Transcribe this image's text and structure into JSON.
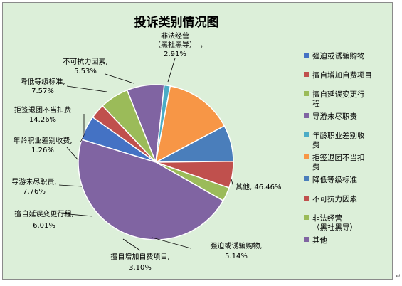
{
  "chart_data": {
    "type": "pie",
    "title": "投诉类别情况图",
    "legend_position": "right",
    "slices": [
      {
        "name": "强迫或诱骗购物",
        "value": 5.14,
        "label": "强迫或诱骗购物,",
        "pct": "5.14%",
        "color": "#4472c4"
      },
      {
        "name": "擅自增加自费项目",
        "value": 3.1,
        "label": "擅自增加自费项目,",
        "pct": "3.10%",
        "color": "#c0504d"
      },
      {
        "name": "擅自延误变更行程",
        "value": 6.01,
        "label": "擅自延误变更行程,",
        "pct": "6.01%",
        "color": "#9bbb59"
      },
      {
        "name": "导游未尽职责",
        "value": 7.76,
        "label": "导游未尽职责,",
        "pct": "7.76%",
        "color": "#8064a2"
      },
      {
        "name": "年龄职业差别收费",
        "value": 1.26,
        "label": "年龄职业差别收费,",
        "pct": "1.26%",
        "color": "#4bacc6"
      },
      {
        "name": "拒签退团不当扣费",
        "value": 14.26,
        "label": "拒签退团不当扣费,",
        "pct": "14.26%",
        "color": "#f79646"
      },
      {
        "name": "降低等级标准",
        "value": 7.57,
        "label": "降低等级标准,",
        "pct": "7.57%",
        "color": "#4a7ebb"
      },
      {
        "name": "不可抗力因素",
        "value": 5.53,
        "label": "不可抗力因素,",
        "pct": "5.53%",
        "color": "#c0504d"
      },
      {
        "name": "非法经营（黑社黑导）",
        "value": 2.91,
        "label": "非法经营（黑社黑导）,",
        "pct": "2.91%",
        "color": "#9bbb59"
      },
      {
        "name": "其他",
        "value": 46.46,
        "label": "其他,",
        "pct": "46.46%",
        "color": "#8064a2"
      }
    ],
    "legend": [
      {
        "lines": [
          "强迫或诱骗购物"
        ],
        "color": "#4472c4"
      },
      {
        "lines": [
          "擅自增加自费项目"
        ],
        "color": "#c0504d"
      },
      {
        "lines": [
          "擅自延误变更行",
          "程"
        ],
        "color": "#9bbb59"
      },
      {
        "lines": [
          "导游未尽职责"
        ],
        "color": "#8064a2"
      },
      {
        "lines": [
          "年龄职业差别收",
          "费"
        ],
        "color": "#4bacc6"
      },
      {
        "lines": [
          "拒签退团不当扣",
          "费"
        ],
        "color": "#f79646"
      },
      {
        "lines": [
          "降低等级标准"
        ],
        "color": "#4a7ebb"
      },
      {
        "lines": [
          "不可抗力因素"
        ],
        "color": "#c0504d"
      },
      {
        "lines": [
          "非法经营",
          "（黑社黑导）"
        ],
        "color": "#9bbb59"
      },
      {
        "lines": [
          "其他"
        ],
        "color": "#8064a2"
      }
    ],
    "label_text": {
      "nonlegal_line1": "非法经营",
      "nonlegal_line2": "（黑社黑导）",
      "nonlegal_line3": "，",
      "nonlegal_pct": "2.91%",
      "force_line1": "不可抗力因素,",
      "force_pct": "5.53%",
      "lower_line1": "降低等级标准,",
      "lower_pct": "7.57%",
      "refuse_line1": "拒签退团不当扣费",
      "refuse_pct": "14.26%",
      "age_line1": "年龄职业差别收费,",
      "age_pct": "1.26%",
      "guide_line1": "导游未尽职责,",
      "guide_pct": "7.76%",
      "delay_line1": "擅自延误变更行程,",
      "delay_pct": "6.01%",
      "extra_line1": "擅自增加自费项目,",
      "extra_pct": "3.10%",
      "shop_line1": "强迫或诱骗购物,",
      "shop_pct": "5.14%",
      "other_line1": "其他, 46.46%"
    }
  }
}
